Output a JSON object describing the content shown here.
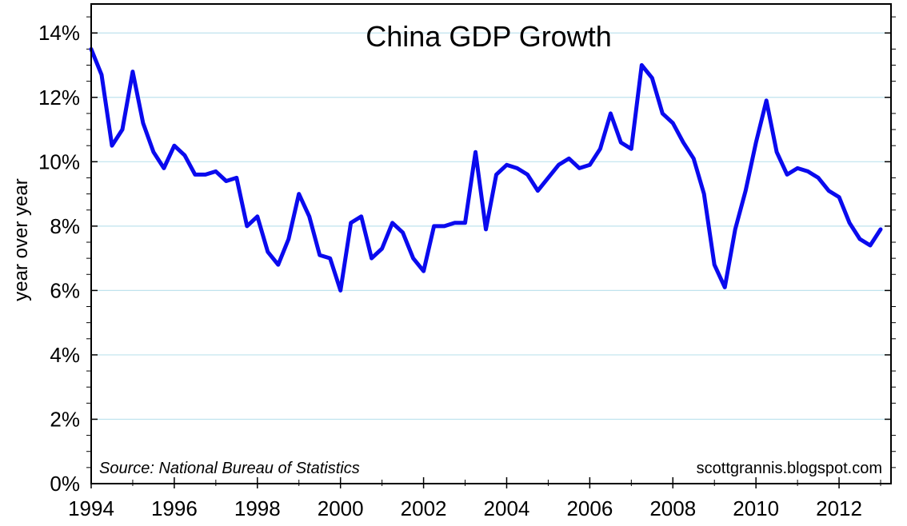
{
  "chart_data": {
    "type": "line",
    "title": "China GDP Growth",
    "ylabel": "year over year",
    "xlabel": "",
    "source_note": "Source: National Bureau of Statistics",
    "credit": "scottgrannis.blogspot.com",
    "xlim": [
      1994,
      2013.25
    ],
    "ylim": [
      0,
      14.9
    ],
    "y_ticks": [
      0,
      2,
      4,
      6,
      8,
      10,
      12,
      14
    ],
    "y_tick_labels": [
      "0%",
      "2%",
      "4%",
      "6%",
      "8%",
      "10%",
      "12%",
      "14%"
    ],
    "x_ticks": [
      1994,
      1996,
      1998,
      2000,
      2002,
      2004,
      2006,
      2008,
      2010,
      2012
    ],
    "x_tick_labels": [
      "1994",
      "1996",
      "1998",
      "2000",
      "2002",
      "2004",
      "2006",
      "2008",
      "2010",
      "2012"
    ],
    "grid": true,
    "line_color": "#0a0aee",
    "grid_color": "#bfe3ee",
    "series": [
      {
        "name": "",
        "x": [
          1994.0,
          1994.25,
          1994.5,
          1994.75,
          1995.0,
          1995.25,
          1995.5,
          1995.75,
          1996.0,
          1996.25,
          1996.5,
          1996.75,
          1997.0,
          1997.25,
          1997.5,
          1997.75,
          1998.0,
          1998.25,
          1998.5,
          1998.75,
          1999.0,
          1999.25,
          1999.5,
          1999.75,
          2000.0,
          2000.25,
          2000.5,
          2000.75,
          2001.0,
          2001.25,
          2001.5,
          2001.75,
          2002.0,
          2002.25,
          2002.5,
          2002.75,
          2003.0,
          2003.25,
          2003.5,
          2003.75,
          2004.0,
          2004.25,
          2004.5,
          2004.75,
          2005.0,
          2005.25,
          2005.5,
          2005.75,
          2006.0,
          2006.25,
          2006.5,
          2006.75,
          2007.0,
          2007.25,
          2007.5,
          2007.75,
          2008.0,
          2008.25,
          2008.5,
          2008.75,
          2009.0,
          2009.25,
          2009.5,
          2009.75,
          2010.0,
          2010.25,
          2010.5,
          2010.75,
          2011.0,
          2011.25,
          2011.5,
          2011.75,
          2012.0,
          2012.25,
          2012.5,
          2012.75,
          2013.0
        ],
        "values": [
          13.5,
          12.7,
          10.5,
          11.0,
          12.8,
          11.2,
          10.3,
          9.8,
          10.5,
          10.2,
          9.6,
          9.6,
          9.7,
          9.4,
          9.5,
          8.0,
          8.3,
          7.2,
          6.8,
          7.6,
          9.0,
          8.3,
          7.1,
          7.0,
          6.0,
          8.1,
          8.3,
          7.0,
          7.3,
          8.1,
          7.8,
          7.0,
          6.6,
          8.0,
          8.0,
          8.1,
          8.1,
          10.3,
          7.9,
          9.6,
          9.9,
          9.8,
          9.6,
          9.1,
          9.5,
          9.9,
          10.1,
          9.8,
          9.9,
          10.4,
          11.5,
          10.6,
          10.4,
          13.0,
          12.6,
          11.5,
          11.2,
          10.6,
          10.1,
          9.0,
          6.8,
          6.1,
          7.9,
          9.1,
          10.6,
          11.9,
          10.3,
          9.6,
          9.8,
          9.7,
          9.5,
          9.1,
          8.9,
          8.1,
          7.6,
          7.4,
          7.9
        ]
      }
    ]
  }
}
